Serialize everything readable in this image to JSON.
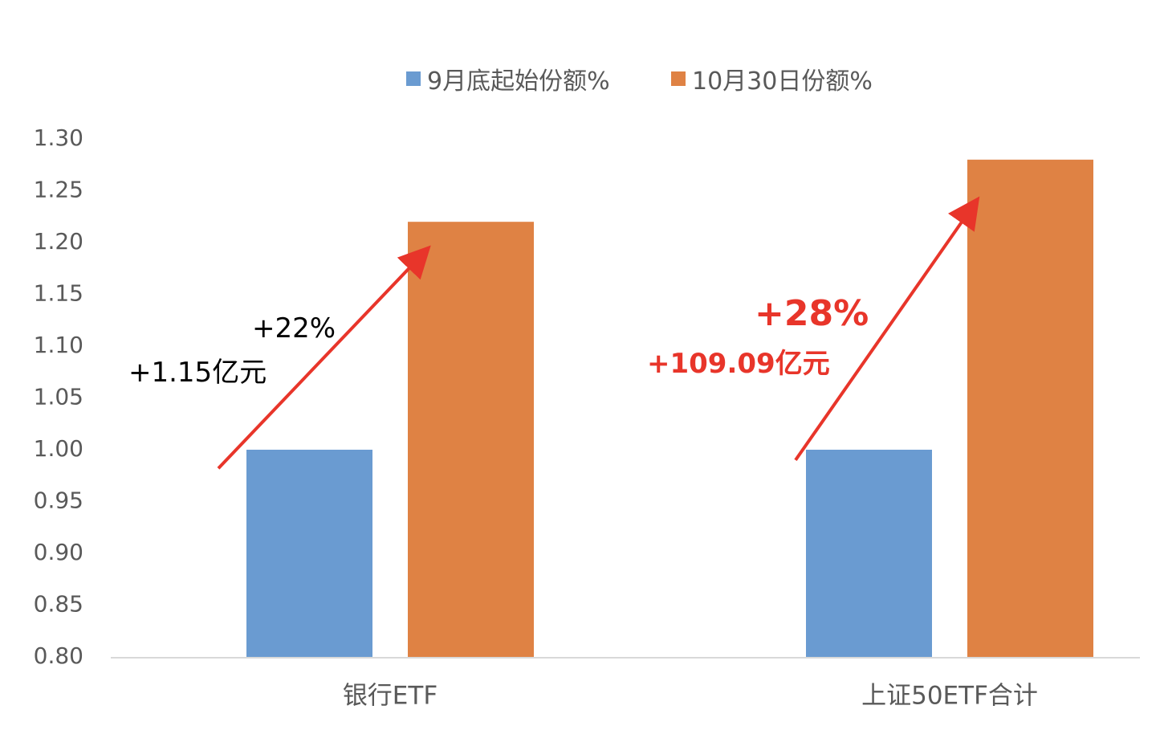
{
  "chart_data": {
    "type": "bar",
    "categories": [
      "银行ETF",
      "上证50ETF合计"
    ],
    "series": [
      {
        "name": "9月底起始份额%",
        "values": [
          1.0,
          1.0
        ]
      },
      {
        "name": "10月30日份额%",
        "values": [
          1.22,
          1.28
        ]
      }
    ],
    "ylim": [
      0.8,
      1.3
    ],
    "yticks": [
      "0.80",
      "0.85",
      "0.90",
      "0.95",
      "1.00",
      "1.05",
      "1.10",
      "1.15",
      "1.20",
      "1.25",
      "1.30"
    ],
    "legend_position": "top",
    "grid": false,
    "colors": [
      "#6a9bd1",
      "#df8244"
    ],
    "annotations": {
      "bank_pct": "+22%",
      "bank_amount": "+1.15亿元",
      "sz50_pct": "+28%",
      "sz50_amount": "+109.09亿元"
    },
    "arrow_color": "#e8352a"
  }
}
